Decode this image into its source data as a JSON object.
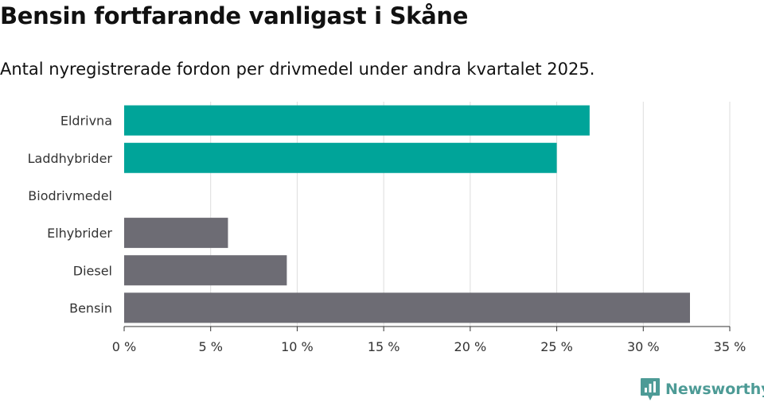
{
  "header": {
    "title": "Bensin fortfarande vanligast i Skåne",
    "subtitle": "Antal nyregistrerade fordon per drivmedel under andra kvartalet 2025."
  },
  "chart_data": {
    "type": "bar",
    "orientation": "horizontal",
    "title": "",
    "xlabel": "",
    "ylabel": "",
    "categories": [
      "Eldrivna",
      "Laddhybrider",
      "Biodrivmedel",
      "Elhybrider",
      "Diesel",
      "Bensin"
    ],
    "values": [
      26.9,
      25.0,
      0,
      6.0,
      9.4,
      32.7
    ],
    "bar_colors": [
      "#00a499",
      "#00a499",
      "#00a499",
      "#6d6c74",
      "#6d6c74",
      "#6d6c74"
    ],
    "xlim": [
      0,
      35
    ],
    "xticks": [
      0,
      5,
      10,
      15,
      20,
      25,
      30,
      35
    ],
    "tick_suffix": " %",
    "grid": true,
    "legend": "none"
  },
  "brand": {
    "name": "Newsworthy",
    "icon": "newsworthy-logo-icon",
    "color": "#4d9b96"
  }
}
